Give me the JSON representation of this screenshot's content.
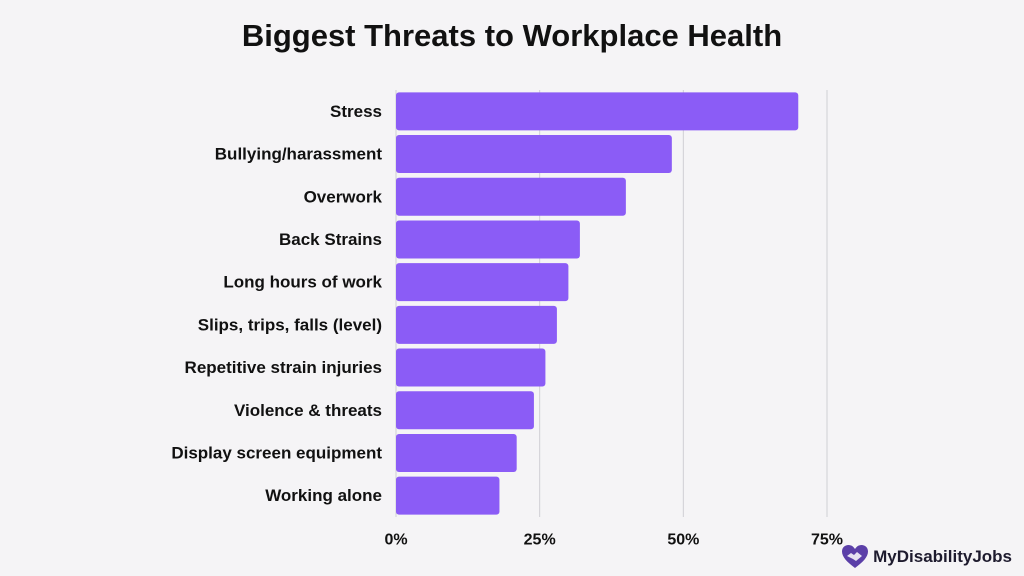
{
  "title": "Biggest Threats to Workplace Health",
  "brand": {
    "name": "MyDisabilityJobs",
    "icon": "heart-handshake-icon",
    "color": "#5b3fa8"
  },
  "colors": {
    "bar": "#8b5cf6",
    "background": "#f5f4f6",
    "grid": "#cfcfd4"
  },
  "chart_data": {
    "type": "bar",
    "orientation": "horizontal",
    "categories": [
      "Stress",
      "Bullying/harassment",
      "Overwork",
      "Back Strains",
      "Long hours of work",
      "Slips, trips, falls (level)",
      "Repetitive strain injuries",
      "Violence & threats",
      "Display screen equipment",
      "Working alone"
    ],
    "values": [
      70,
      48,
      40,
      32,
      30,
      28,
      26,
      24,
      21,
      18
    ],
    "unit": "%",
    "xlim": [
      0,
      75
    ],
    "xticks": [
      0,
      25,
      50,
      75
    ],
    "xtick_labels": [
      "0%",
      "25%",
      "50%",
      "75%"
    ],
    "grid": "vertical",
    "legend": "none"
  }
}
